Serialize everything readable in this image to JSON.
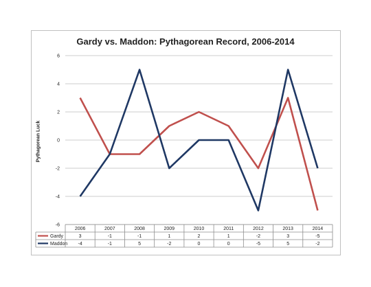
{
  "chart_data": {
    "type": "line",
    "title": "Gardy vs. Maddon: Pythagorean Record, 2006-2014",
    "xlabel": "",
    "ylabel": "Pythagorean Luck",
    "ylim": [
      -6,
      6
    ],
    "yticks": [
      6,
      4,
      2,
      0,
      -2,
      -4,
      -6
    ],
    "grid": true,
    "legend": "data table below chart",
    "categories": [
      "2006",
      "2007",
      "2008",
      "2009",
      "2010",
      "2011",
      "2012",
      "2013",
      "2014"
    ],
    "series": [
      {
        "name": "Gardy",
        "color": "#c0504d",
        "values": [
          3,
          -1,
          -1,
          1,
          2,
          1,
          -2,
          3,
          -5
        ]
      },
      {
        "name": "Maddon",
        "color": "#1f3864",
        "values": [
          -4,
          -1,
          5,
          -2,
          0,
          0,
          -5,
          5,
          -2
        ]
      }
    ]
  }
}
